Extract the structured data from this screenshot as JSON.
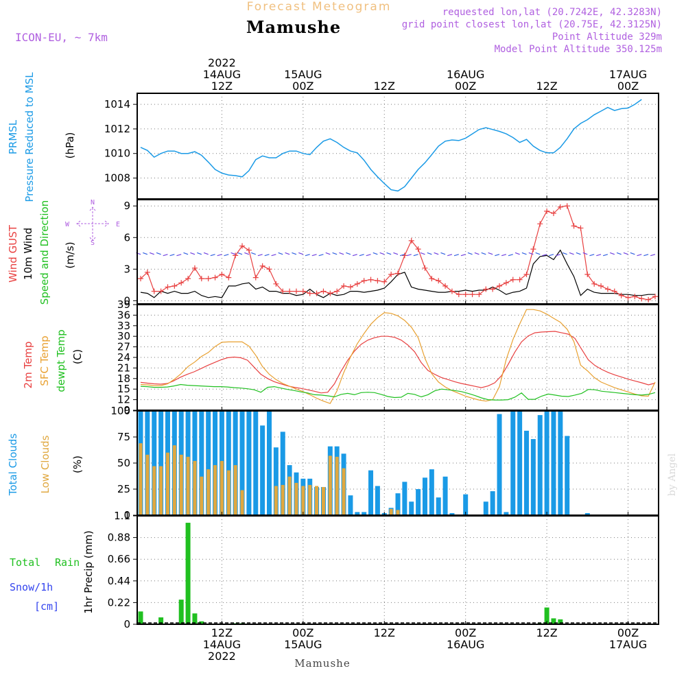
{
  "header": {
    "subtitle": "Forecast Meteogram",
    "station": "Mamushe",
    "model": "ICON-EU, ~ 7km",
    "requested": "requested lon,lat (20.7242E, 42.3283N)",
    "grid_point": "grid point closest lon,lat (20.75E, 42.3125N)",
    "point_altitude": "Point Altitude 329m",
    "model_altitude": "Model Point Altitude 350.125m"
  },
  "footer": {
    "station": "Mamushe",
    "credit": "by Angel"
  },
  "colors": {
    "pressure": "#1a9ae6",
    "gust": "#e84040",
    "wind": "#000000",
    "temp": "#e84040",
    "sfc": "#e8a030",
    "dewpt": "#20c020",
    "clouds_total": "#1a9ae6",
    "clouds_low": "#e0a840",
    "rain": "#20c020",
    "label_green": "#20c020",
    "label_blue": "#3344ee",
    "purple": "#b060e0",
    "title_orange": "#f0c080",
    "grid": "#777777"
  },
  "time_axis": {
    "top": [
      {
        "idx": 12,
        "lines": [
          "2022",
          "14AUG",
          "12Z"
        ]
      },
      {
        "idx": 24,
        "lines": [
          "15AUG",
          "00Z"
        ]
      },
      {
        "idx": 36,
        "lines": [
          "12Z"
        ]
      },
      {
        "idx": 48,
        "lines": [
          "16AUG",
          "00Z"
        ]
      },
      {
        "idx": 60,
        "lines": [
          "12Z"
        ]
      },
      {
        "idx": 72,
        "lines": [
          "17AUG",
          "00Z"
        ]
      }
    ],
    "bottom": [
      {
        "idx": 12,
        "lines": [
          "12Z",
          "14AUG",
          "2022"
        ]
      },
      {
        "idx": 24,
        "lines": [
          "00Z",
          "15AUG"
        ]
      },
      {
        "idx": 36,
        "lines": [
          "12Z"
        ]
      },
      {
        "idx": 48,
        "lines": [
          "00Z",
          "16AUG"
        ]
      },
      {
        "idx": 60,
        "lines": [
          "12Z"
        ]
      },
      {
        "idx": 72,
        "lines": [
          "00Z",
          "17AUG"
        ]
      }
    ]
  },
  "panels": {
    "pressure": {
      "labels": [
        "PRMSL",
        "Pressure Reduced to MSL",
        "(hPa)"
      ]
    },
    "wind": {
      "labels": [
        "Wind GUST",
        "10m Wind",
        "Speed and Direction",
        "(m/s)"
      ],
      "compass": {
        "n": "N",
        "s": "S",
        "w": "W",
        "e": "E"
      }
    },
    "temp": {
      "labels": [
        "2m Temp",
        "SFC Temp",
        "dewpt Temp",
        "(C)"
      ]
    },
    "clouds": {
      "labels": [
        "Total Clouds",
        "Low Clouds",
        "(%)"
      ]
    },
    "precip": {
      "labels": [
        "Total",
        "Rain",
        "Snow/1h",
        "[cm]",
        "1hr Precip (mm)"
      ]
    }
  },
  "chart_data": [
    {
      "type": "line",
      "title": "PRMSL Pressure Reduced to MSL",
      "ylabel": "(hPa)",
      "ylim": [
        1006.3,
        1014.9
      ],
      "yticks": [
        1008,
        1010,
        1012,
        1014
      ],
      "series": [
        {
          "name": "PRMSL",
          "values": [
            1010.5,
            1010.25,
            1009.7,
            1010.0,
            1010.2,
            1010.2,
            1010.0,
            1010.0,
            1010.15,
            1009.85,
            1009.3,
            1008.7,
            1008.4,
            1008.25,
            1008.2,
            1008.1,
            1008.6,
            1009.5,
            1009.8,
            1009.65,
            1009.65,
            1010.0,
            1010.2,
            1010.2,
            1010.0,
            1009.9,
            1010.5,
            1011.0,
            1011.2,
            1010.9,
            1010.5,
            1010.2,
            1010.05,
            1009.45,
            1008.7,
            1008.1,
            1007.55,
            1007.05,
            1006.95,
            1007.3,
            1008.0,
            1008.7,
            1009.25,
            1009.9,
            1010.6,
            1011.0,
            1011.1,
            1011.05,
            1011.25,
            1011.6,
            1011.95,
            1012.1,
            1011.95,
            1011.8,
            1011.6,
            1011.3,
            1010.9,
            1011.15,
            1010.6,
            1010.25,
            1010.05,
            1010.05,
            1010.5,
            1011.2,
            1012.0,
            1012.45,
            1012.75,
            1013.15,
            1013.45,
            1013.75,
            1013.5,
            1013.65,
            1013.7,
            1014.0,
            1014.4
          ]
        }
      ]
    },
    {
      "type": "line",
      "title": "Wind GUST / 10m Wind Speed and Direction",
      "ylabel": "(m/s)",
      "ylim": [
        -0.3,
        9.6
      ],
      "yticks": [
        0,
        3,
        6,
        9
      ],
      "series": [
        {
          "name": "Wind GUST",
          "values": [
            2.1,
            2.7,
            0.9,
            0.9,
            1.3,
            1.4,
            1.7,
            2.1,
            3.1,
            2.1,
            2.1,
            2.2,
            2.5,
            2.2,
            4.3,
            5.2,
            4.8,
            2.2,
            3.3,
            3.0,
            1.6,
            0.9,
            0.9,
            0.9,
            0.9,
            0.7,
            0.7,
            0.9,
            0.7,
            0.9,
            1.4,
            1.3,
            1.6,
            1.9,
            2.0,
            1.9,
            1.8,
            2.5,
            2.6,
            4.3,
            5.7,
            4.9,
            3.1,
            2.1,
            1.9,
            1.4,
            0.9,
            0.6,
            0.6,
            0.6,
            0.6,
            1.1,
            1.1,
            1.4,
            1.7,
            2.0,
            2.0,
            2.5,
            4.9,
            7.3,
            8.5,
            8.3,
            8.9,
            9.0,
            7.1,
            6.9,
            2.5,
            1.6,
            1.4,
            1.1,
            0.9,
            0.5,
            0.3,
            0.4,
            0.2,
            0.1,
            0.4
          ]
        },
        {
          "name": "10m Wind",
          "values": [
            0.8,
            0.7,
            0.3,
            0.9,
            0.7,
            0.9,
            0.7,
            0.7,
            0.9,
            0.5,
            0.3,
            0.4,
            0.3,
            1.4,
            1.4,
            1.6,
            1.7,
            1.1,
            1.3,
            0.9,
            0.9,
            0.7,
            0.7,
            0.5,
            0.6,
            1.1,
            0.6,
            0.3,
            0.7,
            0.5,
            0.6,
            0.9,
            0.9,
            0.8,
            0.9,
            1.0,
            1.2,
            1.8,
            2.5,
            2.7,
            1.3,
            1.1,
            1.0,
            0.9,
            0.8,
            0.8,
            0.9,
            0.9,
            1.0,
            0.9,
            1.0,
            1.0,
            1.3,
            1.0,
            0.6,
            0.8,
            0.9,
            1.2,
            3.5,
            4.2,
            4.3,
            3.9,
            4.8,
            3.5,
            2.3,
            0.5,
            1.1,
            0.8,
            0.7,
            0.7,
            0.7,
            0.6,
            0.6,
            0.5,
            0.5,
            0.6,
            0.6
          ]
        }
      ]
    },
    {
      "type": "line",
      "title": "2m Temp / SFC Temp / dewpt Temp",
      "ylabel": "(C)",
      "ylim": [
        9,
        39
      ],
      "yticks": [
        9,
        12,
        15,
        18,
        21,
        24,
        27,
        30,
        33,
        36,
        39
      ],
      "series": [
        {
          "name": "2m Temp",
          "values": [
            16.9,
            16.7,
            16.5,
            16.4,
            16.6,
            17.4,
            18.4,
            19.2,
            19.9,
            20.8,
            21.7,
            22.5,
            23.3,
            23.9,
            24.1,
            23.9,
            23.2,
            21.2,
            19.2,
            18.0,
            17.1,
            16.5,
            15.9,
            15.5,
            15.2,
            14.8,
            14.4,
            13.9,
            14.1,
            16.5,
            20.1,
            23.2,
            25.8,
            27.7,
            28.9,
            29.6,
            30.0,
            30.0,
            29.7,
            28.9,
            27.5,
            25.6,
            22.5,
            20.3,
            19.2,
            18.3,
            17.7,
            17.1,
            16.6,
            16.2,
            15.8,
            15.4,
            15.9,
            16.8,
            18.8,
            22.0,
            25.5,
            28.4,
            30.1,
            31.0,
            31.2,
            31.3,
            31.4,
            31.0,
            30.6,
            29.4,
            26.3,
            23.3,
            21.7,
            20.6,
            19.7,
            19.0,
            18.4,
            17.8,
            17.3,
            16.8,
            16.2,
            16.7
          ]
        },
        {
          "name": "SFC Temp",
          "values": [
            16.3,
            16.2,
            16.0,
            16.0,
            16.5,
            17.8,
            19.4,
            21.4,
            22.7,
            24.3,
            25.4,
            27.1,
            28.3,
            28.4,
            28.4,
            28.4,
            27.2,
            24.6,
            21.4,
            19.2,
            17.7,
            16.6,
            15.8,
            15.0,
            14.3,
            13.4,
            12.4,
            11.6,
            10.9,
            14.5,
            19.7,
            24.1,
            27.9,
            30.8,
            33.4,
            35.3,
            36.7,
            36.5,
            35.8,
            34.5,
            32.6,
            29.6,
            23.7,
            19.4,
            17.0,
            15.6,
            14.6,
            13.8,
            13.0,
            12.4,
            11.9,
            11.6,
            12.0,
            15.7,
            23.4,
            29.1,
            33.5,
            37.6,
            37.6,
            37.2,
            36.3,
            35.1,
            34.0,
            32.0,
            28.5,
            21.8,
            20.2,
            18.3,
            17.0,
            16.2,
            15.4,
            14.8,
            14.2,
            13.6,
            13.1,
            13.0,
            17.0
          ]
        },
        {
          "name": "dewpt Temp",
          "values": [
            15.8,
            15.7,
            15.5,
            15.5,
            15.6,
            15.9,
            16.3,
            16.1,
            16.0,
            15.9,
            15.8,
            15.7,
            15.7,
            15.6,
            15.4,
            15.3,
            15.1,
            14.8,
            14.1,
            15.5,
            15.7,
            15.3,
            14.9,
            14.6,
            14.2,
            13.9,
            13.4,
            13.3,
            13.1,
            12.8,
            13.5,
            13.8,
            13.4,
            14.0,
            14.1,
            14.0,
            13.5,
            12.9,
            12.6,
            12.7,
            13.8,
            13.5,
            12.8,
            13.4,
            14.5,
            15.0,
            14.8,
            14.6,
            14.3,
            13.8,
            13.2,
            12.5,
            12.0,
            11.9,
            11.9,
            12.0,
            12.7,
            13.9,
            12.1,
            12.1,
            13.0,
            13.6,
            13.3,
            13.0,
            12.9,
            13.3,
            13.8,
            14.9,
            14.8,
            14.4,
            14.2,
            14.0,
            13.8,
            13.6,
            13.4,
            13.3,
            13.5,
            14.0
          ]
        }
      ]
    },
    {
      "type": "bar",
      "title": "Total Clouds / Low Clouds",
      "ylabel": "(%)",
      "ylim": [
        0,
        100
      ],
      "yticks": [
        0,
        25,
        50,
        75,
        100
      ],
      "series": [
        {
          "name": "Total Clouds",
          "values": [
            100,
            100,
            100,
            100,
            100,
            100,
            100,
            100,
            100,
            100,
            100,
            100,
            100,
            100,
            100,
            100,
            100,
            100,
            86,
            100,
            65,
            80,
            48,
            41,
            35,
            35,
            27,
            27,
            66,
            66,
            59,
            19,
            3,
            3,
            43,
            28,
            2,
            7,
            21,
            32,
            13,
            25,
            36,
            44,
            17,
            37,
            2,
            0,
            20,
            0,
            0,
            13,
            23,
            97,
            3,
            100,
            100,
            81,
            73,
            96,
            100,
            100,
            100,
            76,
            0,
            0,
            2,
            0,
            0,
            0,
            0,
            0,
            0,
            0,
            0,
            0,
            0
          ]
        },
        {
          "name": "Low Clouds",
          "values": [
            69,
            58,
            47,
            47,
            60,
            67,
            58,
            56,
            52,
            37,
            44,
            48,
            52,
            43,
            48,
            24,
            0,
            0,
            0,
            0,
            28,
            29,
            37,
            31,
            28,
            29,
            28,
            27,
            57,
            56,
            45,
            0,
            0,
            0,
            0,
            0,
            0,
            6,
            5,
            0,
            0,
            0,
            0,
            0,
            0,
            0,
            0,
            0,
            0,
            0,
            0,
            0,
            0,
            0,
            0,
            0,
            0,
            0,
            0,
            0,
            0,
            0,
            0,
            0,
            0,
            0,
            0,
            0,
            0,
            0,
            0,
            0,
            0,
            0,
            0,
            0,
            0
          ]
        }
      ]
    },
    {
      "type": "bar",
      "title": "1hr Precip",
      "ylabel": "1hr Precip (mm)",
      "ylim": [
        0,
        1.1
      ],
      "yticks": [
        0,
        0.22,
        0.44,
        0.66,
        0.88,
        1.1
      ],
      "series": [
        {
          "name": "Total Rain",
          "values": [
            0.13,
            0,
            0,
            0.07,
            0,
            0,
            0.25,
            1.03,
            0.11,
            0.03,
            0,
            0,
            0,
            0,
            0.01,
            0.01,
            0,
            0,
            0,
            0,
            0,
            0,
            0,
            0,
            0,
            0,
            0,
            0,
            0,
            0,
            0,
            0,
            0,
            0,
            0,
            0,
            0,
            0,
            0,
            0,
            0,
            0,
            0,
            0,
            0,
            0,
            0,
            0,
            0,
            0,
            0,
            0,
            0,
            0,
            0,
            0,
            0,
            0,
            0,
            0.01,
            0.17,
            0.06,
            0.05,
            0,
            0,
            0,
            0,
            0,
            0,
            0,
            0,
            0,
            0,
            0,
            0,
            0,
            0
          ]
        }
      ]
    }
  ]
}
